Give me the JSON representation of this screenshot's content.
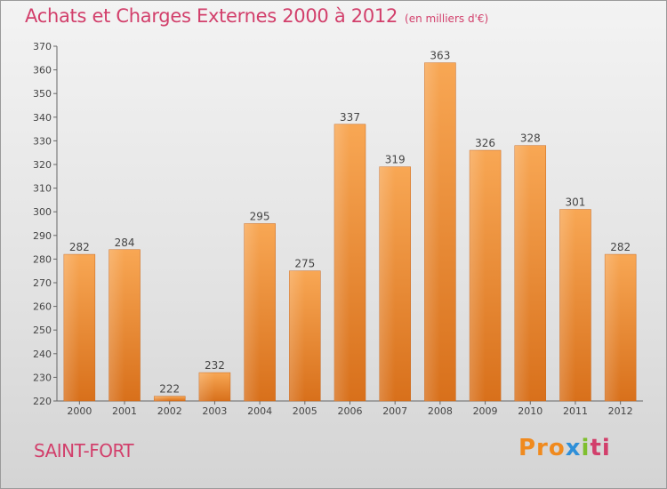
{
  "header": {
    "title": "Achats et Charges Externes 2000 à 2012",
    "subtitle": "(en milliers d'€)"
  },
  "footer": {
    "town": "SAINT-FORT",
    "logo": {
      "p1": "Pro",
      "p2": "x",
      "p3": "i",
      "p4": "ti"
    }
  },
  "colors": {
    "bar_top": "#f7a452",
    "bar_bottom": "#d9701c",
    "title": "#d23f6b"
  },
  "chart_data": {
    "type": "bar",
    "title": "Achats et Charges Externes 2000 à 2012",
    "subtitle": "(en milliers d'€)",
    "categories": [
      "2000",
      "2001",
      "2002",
      "2003",
      "2004",
      "2005",
      "2006",
      "2007",
      "2008",
      "2009",
      "2010",
      "2011",
      "2012"
    ],
    "values": [
      282,
      284,
      222,
      232,
      295,
      275,
      337,
      319,
      363,
      326,
      328,
      301,
      282
    ],
    "ylim": [
      220,
      370
    ],
    "yticks": [
      220,
      230,
      240,
      250,
      260,
      270,
      280,
      290,
      300,
      310,
      320,
      330,
      340,
      350,
      360,
      370
    ],
    "grid": false,
    "data_labels": true
  }
}
